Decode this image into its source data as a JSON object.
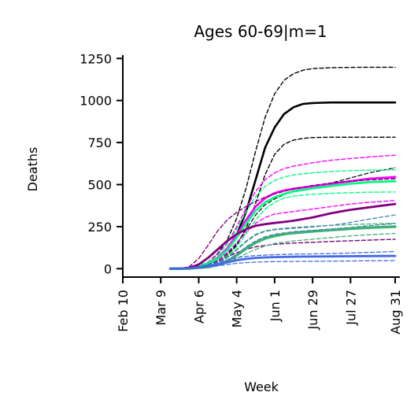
{
  "chart_data": {
    "type": "line",
    "title": "Ages 60-69|m=1",
    "xlabel": "Week",
    "ylabel": "Deaths",
    "x_ticks": [
      "Feb 10",
      "Mar 9",
      "Apr 6",
      "May 4",
      "Jun 1",
      "Jun 29",
      "Jul 27",
      "Aug 31"
    ],
    "x_tick_weeks": [
      0,
      4,
      8,
      12,
      16,
      20,
      24,
      28.7
    ],
    "xlim": [
      0,
      29.2
    ],
    "y_ticks": [
      0,
      250,
      500,
      750,
      1000,
      1250
    ],
    "ylim": [
      -50,
      1270
    ],
    "grid": false,
    "legend": "none",
    "series": [
      {
        "color": "#000000",
        "style": "solid",
        "width": 2.6,
        "x": [
          5,
          6,
          7,
          8,
          9,
          10,
          11,
          12,
          13,
          14,
          15,
          16,
          17,
          18,
          19,
          20,
          21,
          22,
          24,
          26,
          28.7
        ],
        "values": [
          0,
          0,
          2,
          10,
          28,
          60,
          115,
          200,
          340,
          530,
          720,
          840,
          920,
          960,
          980,
          985,
          987,
          988,
          988,
          988,
          988
        ]
      },
      {
        "color": "#000000",
        "style": "dashed",
        "width": 1.4,
        "x": [
          5,
          6,
          7,
          8,
          9,
          10,
          11,
          12,
          13,
          14,
          15,
          16,
          17,
          18,
          19,
          20,
          22,
          24,
          26,
          28.7
        ],
        "values": [
          0,
          0,
          3,
          15,
          40,
          90,
          170,
          300,
          480,
          700,
          900,
          1040,
          1120,
          1160,
          1180,
          1190,
          1195,
          1197,
          1198,
          1198
        ]
      },
      {
        "color": "#000000",
        "style": "dashed",
        "width": 1.4,
        "x": [
          5,
          6,
          7,
          8,
          9,
          10,
          11,
          12,
          13,
          14,
          15,
          16,
          17,
          18,
          19,
          20,
          22,
          24,
          26,
          28.7
        ],
        "values": [
          0,
          0,
          1,
          6,
          18,
          40,
          80,
          140,
          240,
          390,
          560,
          680,
          740,
          765,
          775,
          780,
          782,
          782,
          782,
          782
        ]
      },
      {
        "color": "#000000",
        "style": "dashed",
        "width": 1.2,
        "x": [
          5,
          7,
          9,
          10,
          11,
          12,
          13,
          14,
          15,
          16,
          17,
          18,
          20,
          22,
          24,
          26,
          28.7
        ],
        "values": [
          0,
          2,
          25,
          50,
          90,
          150,
          230,
          320,
          380,
          415,
          440,
          460,
          480,
          510,
          540,
          570,
          600
        ]
      },
      {
        "color": "#ff00ff",
        "style": "solid",
        "width": 2.8,
        "x": [
          5,
          6,
          7,
          8,
          9,
          10,
          11,
          12,
          13,
          14,
          15,
          16,
          17,
          18,
          20,
          22,
          24,
          26,
          28.7
        ],
        "values": [
          0,
          0,
          2,
          10,
          30,
          65,
          120,
          200,
          290,
          370,
          420,
          450,
          465,
          475,
          490,
          505,
          520,
          535,
          545
        ]
      },
      {
        "color": "#ff00ff",
        "style": "dashed",
        "width": 1.4,
        "x": [
          5,
          6,
          7,
          8,
          9,
          10,
          11,
          12,
          13,
          14,
          15,
          16,
          17,
          18,
          20,
          22,
          24,
          26,
          28.7
        ],
        "values": [
          0,
          0,
          3,
          14,
          40,
          85,
          150,
          250,
          360,
          460,
          530,
          570,
          595,
          610,
          630,
          645,
          655,
          665,
          675
        ]
      },
      {
        "color": "#ff00ff",
        "style": "dashed",
        "width": 1.4,
        "x": [
          5,
          7,
          9,
          10,
          11,
          12,
          13,
          14,
          15,
          16,
          18,
          20,
          22,
          24,
          26,
          28.7
        ],
        "values": [
          0,
          2,
          22,
          50,
          95,
          155,
          215,
          270,
          305,
          325,
          340,
          355,
          370,
          385,
          395,
          405
        ]
      },
      {
        "color": "#00ff80",
        "style": "solid",
        "width": 2.8,
        "x": [
          5,
          6,
          7,
          8,
          9,
          10,
          11,
          12,
          13,
          14,
          15,
          16,
          17,
          18,
          20,
          22,
          24,
          26,
          28.7
        ],
        "values": [
          0,
          0,
          2,
          10,
          28,
          60,
          110,
          185,
          270,
          345,
          395,
          425,
          445,
          460,
          478,
          492,
          505,
          515,
          520
        ]
      },
      {
        "color": "#00ff80",
        "style": "dashed",
        "width": 1.4,
        "x": [
          5,
          7,
          9,
          10,
          11,
          12,
          13,
          14,
          15,
          16,
          17,
          18,
          20,
          22,
          24,
          26,
          28.7
        ],
        "values": [
          0,
          3,
          38,
          80,
          145,
          235,
          340,
          430,
          490,
          525,
          545,
          558,
          570,
          578,
          583,
          586,
          588
        ]
      },
      {
        "color": "#00ff80",
        "style": "dashed",
        "width": 1.4,
        "x": [
          5,
          7,
          9,
          10,
          11,
          12,
          13,
          14,
          15,
          16,
          17,
          18,
          20,
          22,
          24,
          26,
          28.7
        ],
        "values": [
          0,
          2,
          18,
          40,
          75,
          130,
          210,
          290,
          355,
          395,
          420,
          432,
          442,
          448,
          452,
          455,
          456
        ]
      },
      {
        "color": "#800080",
        "style": "solid",
        "width": 2.8,
        "x": [
          5,
          6,
          7,
          8,
          9,
          10,
          11,
          12,
          13,
          14,
          15,
          16,
          17,
          18,
          20,
          22,
          24,
          26,
          28.7
        ],
        "values": [
          0,
          0,
          5,
          25,
          65,
          115,
          165,
          205,
          235,
          255,
          265,
          272,
          278,
          285,
          305,
          330,
          350,
          365,
          385
        ]
      },
      {
        "color": "#800080",
        "style": "dashed",
        "width": 1.4,
        "x": [
          5,
          6,
          7,
          8,
          9,
          10,
          11,
          12,
          13,
          14,
          15,
          16,
          17,
          18,
          20,
          22,
          24,
          26,
          28.7
        ],
        "values": [
          0,
          0,
          12,
          60,
          140,
          225,
          290,
          335,
          370,
          400,
          425,
          445,
          460,
          475,
          495,
          510,
          520,
          528,
          535
        ]
      },
      {
        "color": "#800080",
        "style": "dashed",
        "width": 1.4,
        "x": [
          5,
          6,
          7,
          8,
          9,
          10,
          11,
          12,
          13,
          14,
          16,
          18,
          20,
          22,
          24,
          26,
          28.7
        ],
        "values": [
          0,
          0,
          2,
          10,
          25,
          45,
          70,
          95,
          115,
          130,
          145,
          152,
          157,
          162,
          166,
          170,
          175
        ]
      },
      {
        "color": "#3cb371",
        "style": "solid",
        "width": 3.4,
        "x": [
          5,
          7,
          9,
          10,
          11,
          12,
          13,
          14,
          15,
          16,
          17,
          18,
          20,
          22,
          24,
          26,
          28.7
        ],
        "values": [
          0,
          1,
          10,
          22,
          45,
          80,
          120,
          155,
          180,
          195,
          205,
          212,
          222,
          230,
          238,
          244,
          250
        ]
      },
      {
        "color": "#3cb371",
        "style": "dashed",
        "width": 1.3,
        "x": [
          5,
          7,
          9,
          10,
          11,
          12,
          13,
          14,
          15,
          16,
          18,
          20,
          22,
          24,
          26,
          28.7
        ],
        "values": [
          0,
          1,
          8,
          18,
          35,
          60,
          90,
          115,
          135,
          150,
          165,
          175,
          185,
          195,
          202,
          210
        ]
      },
      {
        "color": "#3cb371",
        "style": "dashed",
        "width": 1.3,
        "x": [
          5,
          7,
          9,
          10,
          11,
          12,
          13,
          14,
          15,
          16,
          18,
          20,
          22,
          24,
          26,
          28.7
        ],
        "values": [
          0,
          2,
          16,
          35,
          70,
          115,
          165,
          205,
          225,
          235,
          245,
          252,
          258,
          262,
          266,
          270
        ]
      },
      {
        "color": "#4682b4",
        "style": "dashed",
        "width": 1.3,
        "x": [
          5,
          7,
          9,
          10,
          11,
          12,
          13,
          14,
          15,
          16,
          18,
          20,
          22,
          24,
          26,
          28.7
        ],
        "values": [
          0,
          2,
          15,
          32,
          65,
          110,
          160,
          200,
          222,
          232,
          240,
          248,
          258,
          275,
          295,
          320
        ]
      },
      {
        "color": "#4682b4",
        "style": "dashed",
        "width": 1.3,
        "x": [
          5,
          7,
          9,
          10,
          11,
          12,
          13,
          14,
          15,
          16,
          18,
          20,
          22,
          24,
          26,
          28.7
        ],
        "values": [
          0,
          2,
          12,
          25,
          50,
          85,
          130,
          165,
          190,
          205,
          220,
          228,
          236,
          245,
          256,
          268
        ]
      },
      {
        "color": "#4169e1",
        "style": "solid",
        "width": 2.8,
        "x": [
          5,
          7,
          8,
          9,
          10,
          11,
          12,
          13,
          14,
          15,
          16,
          18,
          20,
          22,
          24,
          26,
          28.7
        ],
        "values": [
          0,
          2,
          8,
          16,
          26,
          38,
          50,
          58,
          64,
          67,
          69,
          71,
          72,
          73,
          74,
          75,
          76
        ]
      },
      {
        "color": "#4169e1",
        "style": "dashed",
        "width": 1.3,
        "x": [
          5,
          7,
          8,
          9,
          10,
          11,
          12,
          13,
          14,
          15,
          16,
          18,
          20,
          22,
          24,
          26,
          28.7
        ],
        "values": [
          0,
          3,
          12,
          25,
          38,
          52,
          65,
          73,
          78,
          81,
          83,
          86,
          88,
          90,
          93,
          97,
          102
        ]
      },
      {
        "color": "#4169e1",
        "style": "dashed",
        "width": 1.3,
        "x": [
          5,
          7,
          8,
          9,
          10,
          11,
          12,
          13,
          14,
          15,
          16,
          18,
          20,
          22,
          24,
          26,
          28.7
        ],
        "values": [
          0,
          1,
          5,
          10,
          17,
          25,
          32,
          36,
          39,
          41,
          42,
          43,
          44,
          45,
          46,
          47,
          48
        ]
      }
    ]
  }
}
